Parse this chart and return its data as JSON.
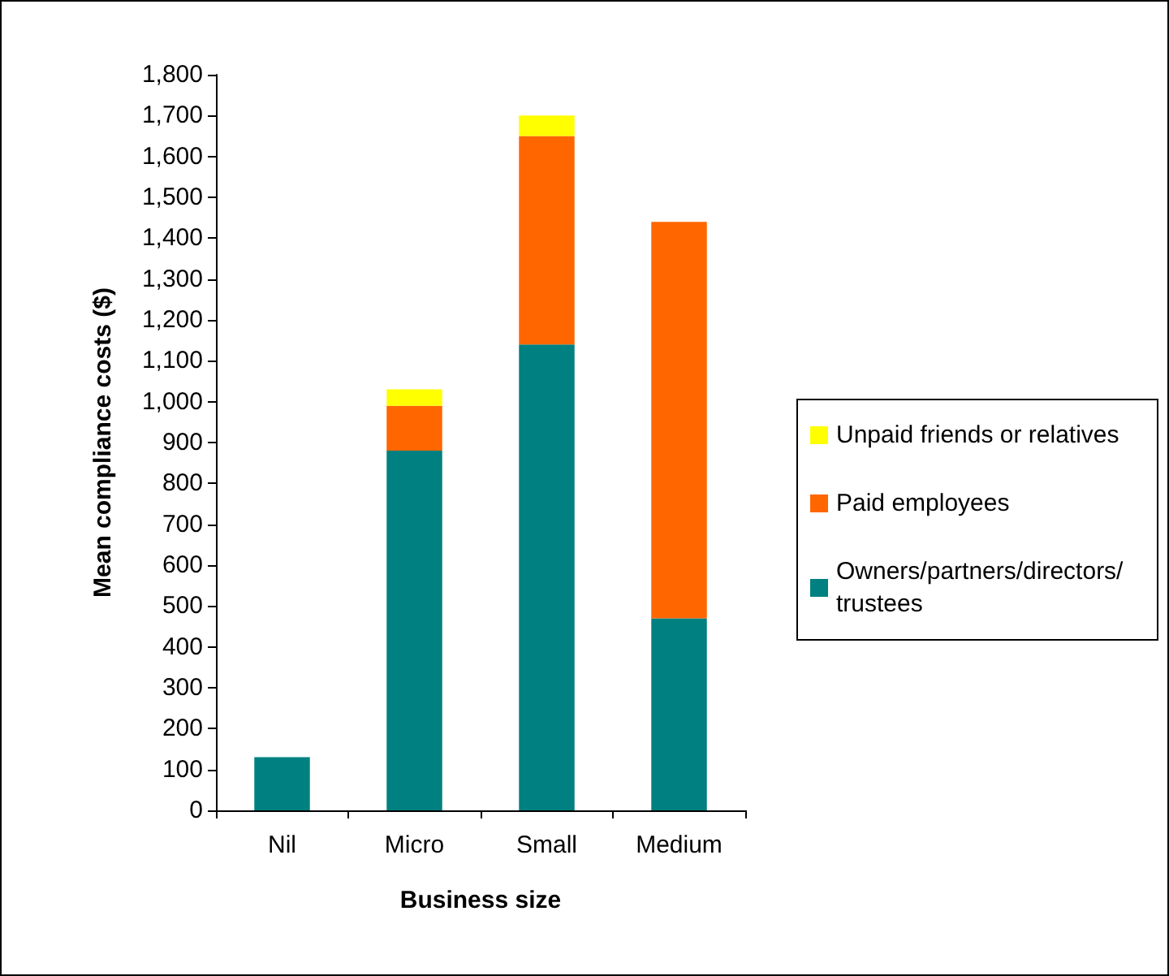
{
  "chart_data": {
    "type": "bar",
    "stacked": true,
    "xlabel": "Business size",
    "ylabel": "Mean compliance costs ($)",
    "categories": [
      "Nil",
      "Micro",
      "Small",
      "Medium"
    ],
    "series": [
      {
        "name": "Owners/partners/directors/trustees",
        "color": "#008080",
        "values": [
          130,
          880,
          1140,
          470
        ]
      },
      {
        "name": "Paid employees",
        "color": "#ff6600",
        "values": [
          null,
          110,
          510,
          970
        ]
      },
      {
        "name": "Unpaid friends or relatives",
        "color": "#ffff00",
        "values": [
          null,
          40,
          50,
          null
        ]
      }
    ],
    "ylim": [
      0,
      1800
    ],
    "yticks": [
      0,
      100,
      200,
      300,
      400,
      500,
      600,
      700,
      800,
      900,
      {
        "value": 1000,
        "label": "1,000"
      },
      {
        "value": 1100,
        "label": "1,100"
      },
      {
        "value": 1200,
        "label": "1,200"
      },
      {
        "value": 1300,
        "label": "1,300"
      },
      {
        "value": 1400,
        "label": "1,400"
      },
      {
        "value": 1500,
        "label": "1,500"
      },
      {
        "value": 1600,
        "label": "1,600"
      },
      {
        "value": 1700,
        "label": "1,700"
      },
      {
        "value": 1800,
        "label": "1,800"
      }
    ],
    "grid": false,
    "legend": "right"
  }
}
